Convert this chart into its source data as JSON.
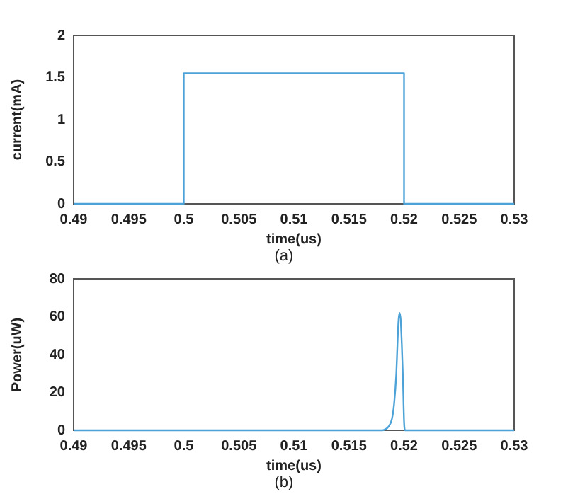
{
  "chart_data": [
    {
      "type": "line",
      "xlabel": "time(us)",
      "ylabel": "current(mA)",
      "annotations": [
        "(a)"
      ],
      "marker": "none",
      "color": "#4da3d8",
      "x": [
        0.49,
        0.5,
        0.5,
        0.52,
        0.52,
        0.53
      ],
      "values": [
        0,
        0,
        1.55,
        1.55,
        0,
        0
      ],
      "xlim": [
        0.49,
        0.53
      ],
      "xticks": [
        0.49,
        0.495,
        0.5,
        0.505,
        0.51,
        0.515,
        0.52,
        0.525,
        0.53
      ],
      "ylim": [
        0,
        2
      ],
      "yticks": [
        0,
        0.5,
        1,
        1.5,
        2
      ]
    },
    {
      "type": "line",
      "xlabel": "time(us)",
      "ylabel": "Power(uW)",
      "annotations": [
        "(b)"
      ],
      "marker": "none",
      "color": "#4da3d8",
      "x": [
        0.49,
        0.518,
        0.5183,
        0.5186,
        0.5189,
        0.5191,
        0.5193,
        0.5194,
        0.5195,
        0.5196,
        0.5197,
        0.5198,
        0.5199,
        0.52,
        0.5201,
        0.53
      ],
      "values": [
        0,
        0,
        0.5,
        2,
        6,
        14,
        30,
        45,
        58,
        62,
        58,
        45,
        28,
        5,
        0,
        0
      ],
      "xlim": [
        0.49,
        0.53
      ],
      "xticks": [
        0.49,
        0.495,
        0.5,
        0.505,
        0.51,
        0.515,
        0.52,
        0.525,
        0.53
      ],
      "ylim": [
        0,
        80
      ],
      "yticks": [
        0,
        20,
        40,
        60,
        80
      ]
    }
  ]
}
